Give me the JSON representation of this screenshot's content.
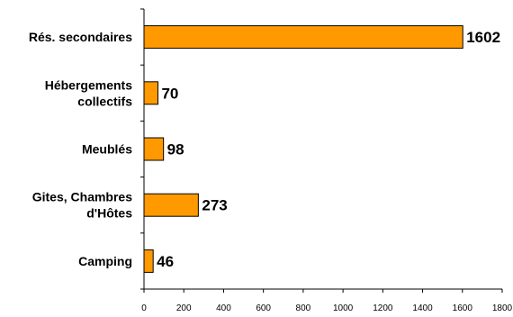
{
  "chart_data": {
    "type": "bar",
    "orientation": "horizontal",
    "categories": [
      [
        "Rés. secondaires"
      ],
      [
        "Hébergements",
        "collectifs"
      ],
      [
        "Meublés"
      ],
      [
        "Gites, Chambres",
        "d'Hôtes"
      ],
      [
        "Camping"
      ]
    ],
    "values": [
      1602,
      70,
      98,
      273,
      46
    ],
    "xlim": [
      0,
      1800
    ],
    "x_ticks": [
      0,
      200,
      400,
      600,
      800,
      1000,
      1200,
      1400,
      1600,
      1800
    ],
    "grid": false,
    "legend": "none",
    "bar_color": "#ff9900",
    "bar_border_color": "#000000"
  }
}
